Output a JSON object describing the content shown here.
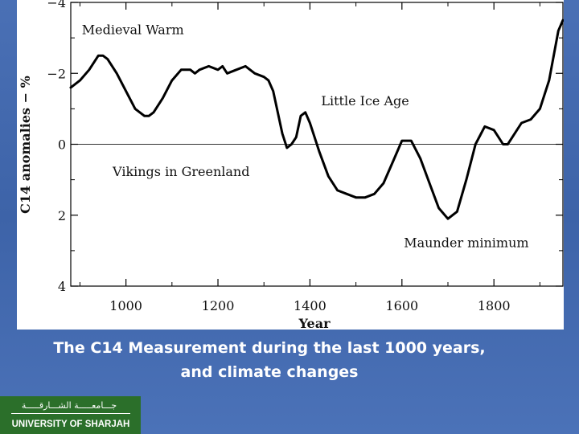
{
  "caption": {
    "line1": "The C14 Measurement during the last 1000 years,",
    "line2": "and climate changes"
  },
  "logo": {
    "arabic": "جـــامعـــــة الشـــارقـــــة",
    "english": "UNIVERSITY OF SHARJAH",
    "color": "#2b6f2a"
  },
  "chart_data": {
    "type": "line",
    "xlabel": "Year",
    "ylabel": "C14 anomalies − %",
    "xlim": [
      880,
      1950
    ],
    "ylim": [
      4,
      -4
    ],
    "y_inverted": true,
    "xticks": [
      1000,
      1200,
      1400,
      1600,
      1800
    ],
    "xtick_labels": [
      "1000",
      "1200",
      "1400",
      "1600",
      "1800"
    ],
    "yticks": [
      -4,
      -2,
      0,
      2,
      4
    ],
    "ytick_labels": [
      "−4",
      "−2",
      "0",
      "2",
      "4"
    ],
    "reference_line": 0,
    "annotations": [
      {
        "text": "Medieval Warm",
        "x": 1015,
        "y": -3.1
      },
      {
        "text": "Little Ice Age",
        "x": 1520,
        "y": -1.1
      },
      {
        "text": "Vikings in Greenland",
        "x": 1120,
        "y": 0.9
      },
      {
        "text": "Maunder minimum",
        "x": 1740,
        "y": 2.9
      }
    ],
    "series": [
      {
        "color": "#000000",
        "x": [
          880,
          900,
          920,
          940,
          950,
          960,
          980,
          1000,
          1020,
          1040,
          1050,
          1060,
          1080,
          1100,
          1120,
          1140,
          1150,
          1160,
          1180,
          1200,
          1210,
          1220,
          1240,
          1260,
          1280,
          1300,
          1310,
          1320,
          1330,
          1340,
          1350,
          1360,
          1370,
          1380,
          1390,
          1400,
          1420,
          1440,
          1460,
          1480,
          1500,
          1520,
          1540,
          1560,
          1580,
          1600,
          1620,
          1640,
          1660,
          1680,
          1700,
          1720,
          1740,
          1760,
          1780,
          1800,
          1820,
          1830,
          1840,
          1860,
          1880,
          1900,
          1920,
          1940,
          1950
        ],
        "y": [
          -1.6,
          -1.8,
          -2.1,
          -2.5,
          -2.5,
          -2.4,
          -2.0,
          -1.5,
          -1.0,
          -0.8,
          -0.8,
          -0.9,
          -1.3,
          -1.8,
          -2.1,
          -2.1,
          -2.0,
          -2.1,
          -2.2,
          -2.1,
          -2.2,
          -2.0,
          -2.1,
          -2.2,
          -2.0,
          -1.9,
          -1.8,
          -1.5,
          -0.9,
          -0.3,
          0.1,
          0.0,
          -0.2,
          -0.8,
          -0.9,
          -0.6,
          0.2,
          0.9,
          1.3,
          1.4,
          1.5,
          1.5,
          1.4,
          1.1,
          0.5,
          -0.1,
          -0.1,
          0.4,
          1.1,
          1.8,
          2.1,
          1.9,
          1.0,
          0.0,
          -0.5,
          -0.4,
          0.0,
          0.0,
          -0.2,
          -0.6,
          -0.7,
          -1.0,
          -1.8,
          -3.2,
          -3.5
        ]
      }
    ]
  }
}
